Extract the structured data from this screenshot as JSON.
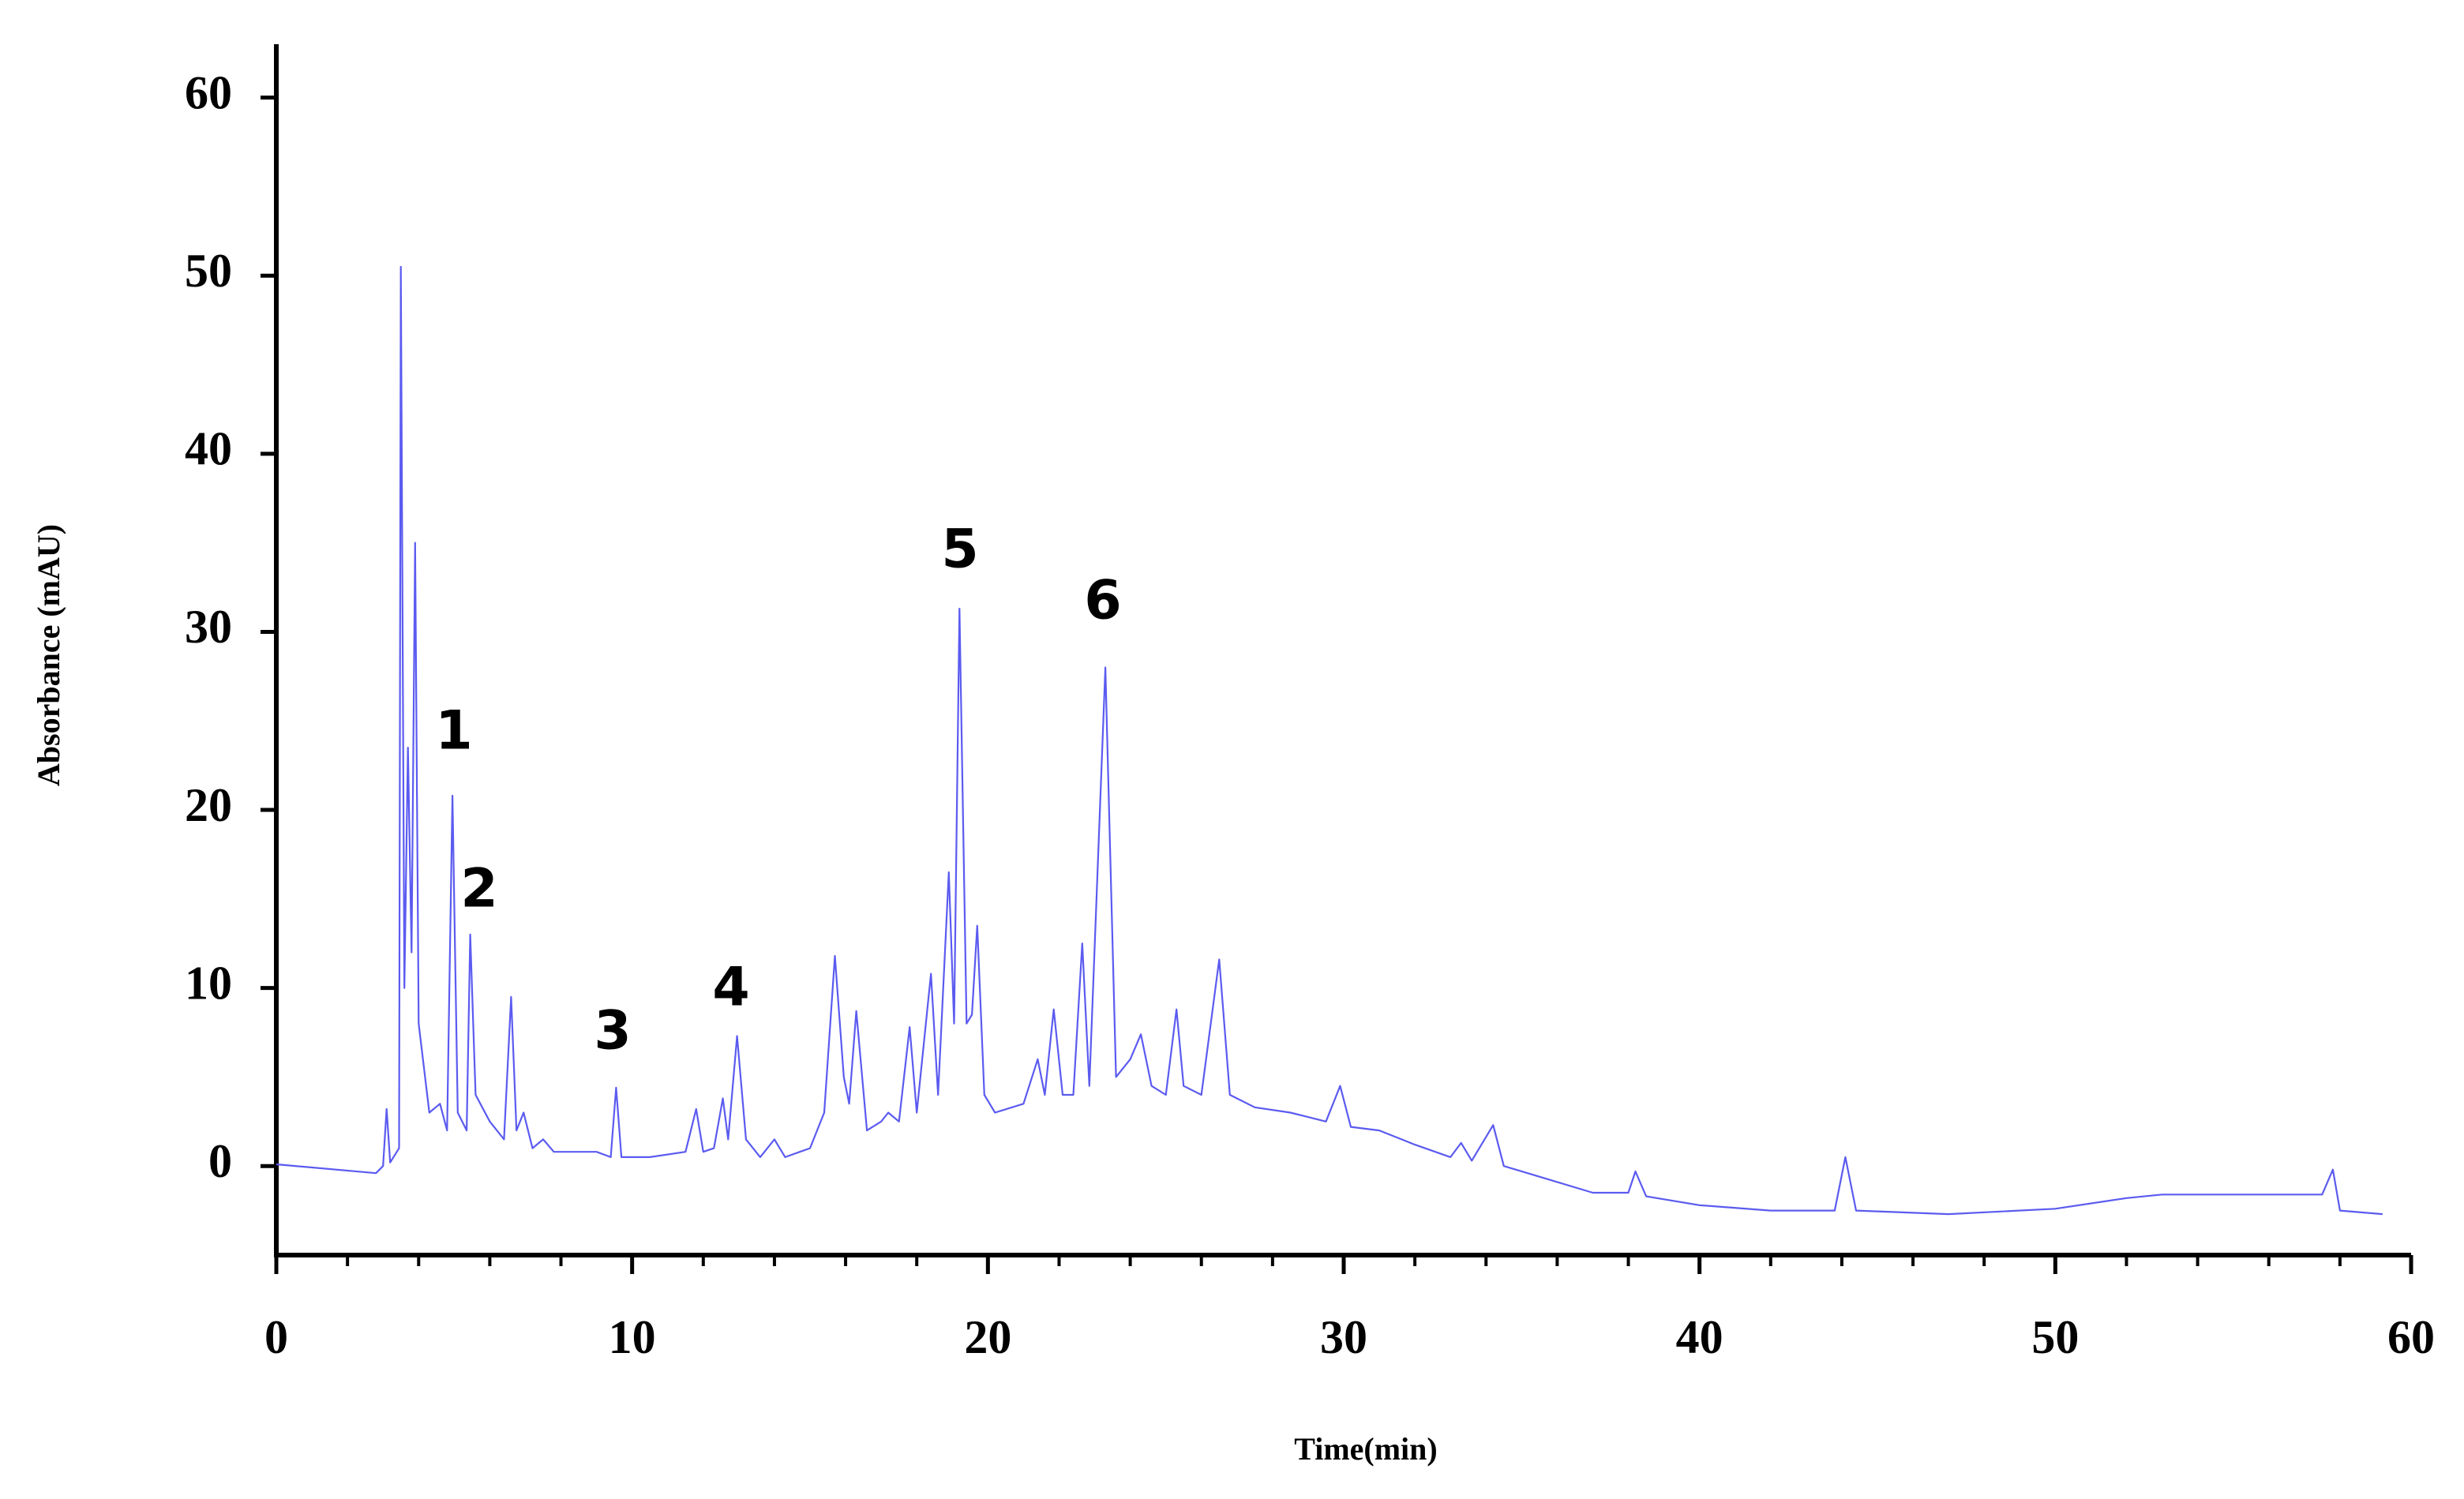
{
  "chart_data": {
    "type": "line",
    "xlabel": "Time(min)",
    "ylabel": "Absorbance (mAU)",
    "annotations": [
      "1",
      "2",
      "3",
      "4",
      "5",
      "6"
    ],
    "xlim": [
      0,
      60
    ],
    "xticks": [
      0,
      10,
      20,
      30,
      40,
      50,
      60
    ],
    "xminor_ticks": [
      2,
      4,
      6,
      8,
      12,
      14,
      16,
      18,
      22,
      24,
      26,
      28,
      32,
      34,
      36,
      38,
      42,
      44,
      46,
      48,
      52,
      54,
      56,
      58
    ],
    "ylim": [
      -5,
      63
    ],
    "yticks": [
      0,
      10,
      20,
      30,
      40,
      50,
      60
    ],
    "grid": false,
    "series": [
      {
        "color": "#5b5bf0",
        "x": [
          0,
          2.8,
          3.0,
          3.1,
          3.2,
          3.45,
          3.5,
          3.6,
          3.7,
          3.8,
          3.9,
          4.0,
          4.3,
          4.6,
          4.8,
          4.95,
          5.1,
          5.35,
          5.45,
          5.6,
          6.0,
          6.4,
          6.6,
          6.75,
          6.95,
          7.2,
          7.5,
          7.8,
          9.0,
          9.4,
          9.55,
          9.7,
          10.5,
          11.5,
          11.8,
          12.0,
          12.3,
          12.55,
          12.7,
          12.95,
          13.2,
          13.6,
          14.0,
          14.3,
          15.0,
          15.4,
          15.7,
          15.95,
          16.1,
          16.3,
          16.6,
          17.0,
          17.2,
          17.5,
          17.8,
          18.0,
          18.4,
          18.6,
          18.9,
          19.05,
          19.2,
          19.4,
          19.55,
          19.7,
          19.9,
          20.2,
          21.0,
          21.4,
          21.6,
          21.85,
          22.1,
          22.4,
          22.65,
          22.85,
          23.3,
          23.6,
          24.0,
          24.3,
          24.6,
          25.0,
          25.3,
          25.5,
          26.0,
          26.5,
          26.8,
          27.5,
          28.5,
          29.5,
          29.9,
          30.2,
          31.0,
          31.5,
          32.0,
          33.0,
          33.3,
          33.6,
          34.2,
          34.5,
          35.5,
          37.0,
          38.0,
          38.2,
          38.5,
          40.0,
          42.0,
          43.8,
          44.1,
          44.4,
          47.0,
          50.0,
          52.0,
          53.0,
          57.5,
          57.8,
          58.0,
          59.2
        ],
        "values": [
          0.1,
          -0.4,
          0,
          3.2,
          0.2,
          1,
          50.5,
          10,
          23.5,
          12,
          35,
          8,
          3,
          3.5,
          2,
          20.8,
          3,
          2,
          13,
          4,
          2.5,
          1.5,
          9.5,
          2,
          3,
          1,
          1.5,
          0.8,
          0.8,
          0.5,
          4.4,
          0.5,
          0.5,
          0.8,
          3.2,
          0.8,
          1,
          3.8,
          1.5,
          7.3,
          1.5,
          0.5,
          1.5,
          0.5,
          1,
          3,
          11.8,
          5,
          3.5,
          8.7,
          2,
          2.5,
          3,
          2.5,
          7.8,
          3,
          10.8,
          4,
          16.5,
          8,
          31.3,
          8,
          8.5,
          13.5,
          4,
          3,
          3.5,
          6,
          4,
          8.8,
          4,
          4,
          12.5,
          4.5,
          28,
          5,
          6,
          7.4,
          4.5,
          4,
          8.8,
          4.5,
          4,
          11.6,
          4,
          3.3,
          3,
          2.5,
          4.5,
          2.2,
          2,
          1.6,
          1.2,
          0.5,
          1.3,
          0.3,
          2.3,
          0,
          -0.6,
          -1.5,
          -1.5,
          -0.3,
          -1.7,
          -2.2,
          -2.5,
          -2.5,
          0.5,
          -2.5,
          -2.7,
          -2.4,
          -1.8,
          -1.6,
          -1.6,
          -0.2,
          -2.5,
          -2.7
        ]
      }
    ]
  }
}
